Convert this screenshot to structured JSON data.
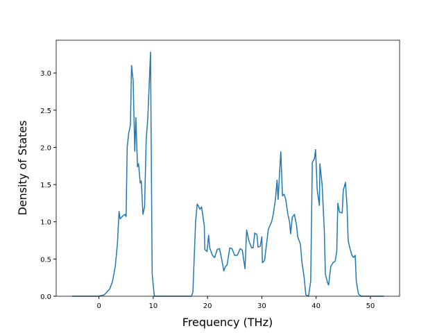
{
  "chart_data": {
    "type": "line",
    "xlabel": "Frequency (THz)",
    "ylabel": "Density of States",
    "x": [
      -5,
      0,
      1,
      2,
      2.5,
      3,
      3.4,
      3.7,
      3.9,
      4.4,
      4.8,
      5.0,
      5.2,
      5.5,
      5.8,
      6.0,
      6.3,
      6.6,
      6.8,
      7.1,
      7.3,
      7.6,
      7.8,
      8.1,
      8.4,
      8.7,
      9.0,
      9.5,
      9.8,
      10.2,
      17.0,
      17.3,
      17.8,
      18.1,
      18.6,
      18.9,
      19.4,
      19.5,
      19.9,
      20.2,
      20.4,
      20.9,
      21.3,
      21.8,
      22.2,
      22.6,
      23.0,
      23.3,
      23.6,
      24.1,
      24.5,
      25.0,
      25.5,
      26.0,
      26.4,
      26.9,
      27.2,
      27.6,
      28.1,
      28.4,
      28.7,
      29.1,
      29.3,
      29.7,
      30.0,
      30.1,
      30.5,
      30.7,
      31.2,
      31.8,
      32.1,
      32.5,
      32.8,
      33.0,
      33.3,
      33.5,
      33.8,
      34.1,
      34.4,
      34.8,
      35.1,
      35.3,
      35.6,
      36.0,
      36.4,
      36.6,
      37.1,
      37.4,
      37.8,
      38.1,
      38.6,
      39.0,
      39.3,
      39.7,
      39.9,
      40.2,
      40.6,
      40.7,
      41.1,
      41.5,
      41.7,
      42.1,
      42.3,
      42.7,
      43.1,
      43.5,
      43.8,
      44.0,
      44.3,
      44.8,
      45.0,
      45.4,
      45.7,
      45.9,
      46.2,
      46.6,
      46.9,
      47.2,
      47.4,
      47.8,
      48.3,
      52.5
    ],
    "series": [
      {
        "color": "#1f77b4",
        "values": [
          0,
          0,
          0.02,
          0.1,
          0.2,
          0.4,
          0.7,
          1.14,
          1.04,
          1.08,
          1.1,
          1.07,
          2.0,
          2.2,
          2.3,
          3.1,
          2.9,
          1.95,
          2.4,
          1.74,
          1.78,
          1.52,
          1.55,
          1.1,
          1.2,
          2.1,
          2.4,
          3.28,
          0.3,
          0,
          0,
          0.05,
          1.0,
          1.24,
          1.17,
          1.2,
          0.95,
          0.63,
          0.6,
          0.82,
          0.65,
          0.55,
          0.52,
          0.63,
          0.64,
          0.5,
          0.34,
          0.4,
          0.42,
          0.65,
          0.64,
          0.55,
          0.55,
          0.64,
          0.62,
          0.37,
          0.89,
          0.75,
          0.65,
          0.65,
          0.85,
          0.83,
          0.66,
          0.67,
          0.8,
          0.45,
          0.48,
          0.6,
          0.9,
          1.0,
          1.1,
          1.3,
          1.56,
          1.3,
          1.7,
          1.94,
          1.35,
          1.37,
          1.3,
          1.1,
          1.0,
          0.84,
          1.06,
          1.1,
          0.95,
          0.8,
          0.7,
          0.45,
          0.25,
          0.02,
          0,
          0.2,
          1.8,
          1.85,
          1.97,
          1.43,
          1.22,
          1.78,
          1.5,
          0.9,
          0.3,
          0.18,
          0.15,
          0.4,
          0.45,
          0.47,
          0.6,
          1.25,
          1.13,
          1.12,
          1.42,
          1.53,
          1.2,
          0.75,
          0.65,
          0.55,
          0.52,
          0.55,
          0.2,
          0.03,
          0,
          0
        ]
      }
    ],
    "xlim": [
      -7.875,
      55.375
    ],
    "xticks": [
      0,
      10,
      20,
      30,
      40,
      50
    ],
    "ylim": [
      0,
      3.44
    ],
    "yticks": [
      {
        "value": 0,
        "label": "0.0"
      },
      {
        "value": 0.5,
        "label": "0.5"
      },
      {
        "value": 1,
        "label": "1.0"
      },
      {
        "value": 1.5,
        "label": "1.5"
      },
      {
        "value": 2,
        "label": "2.0"
      },
      {
        "value": 2.5,
        "label": "2.5"
      },
      {
        "value": 3,
        "label": "3.0"
      }
    ],
    "grid": false
  }
}
